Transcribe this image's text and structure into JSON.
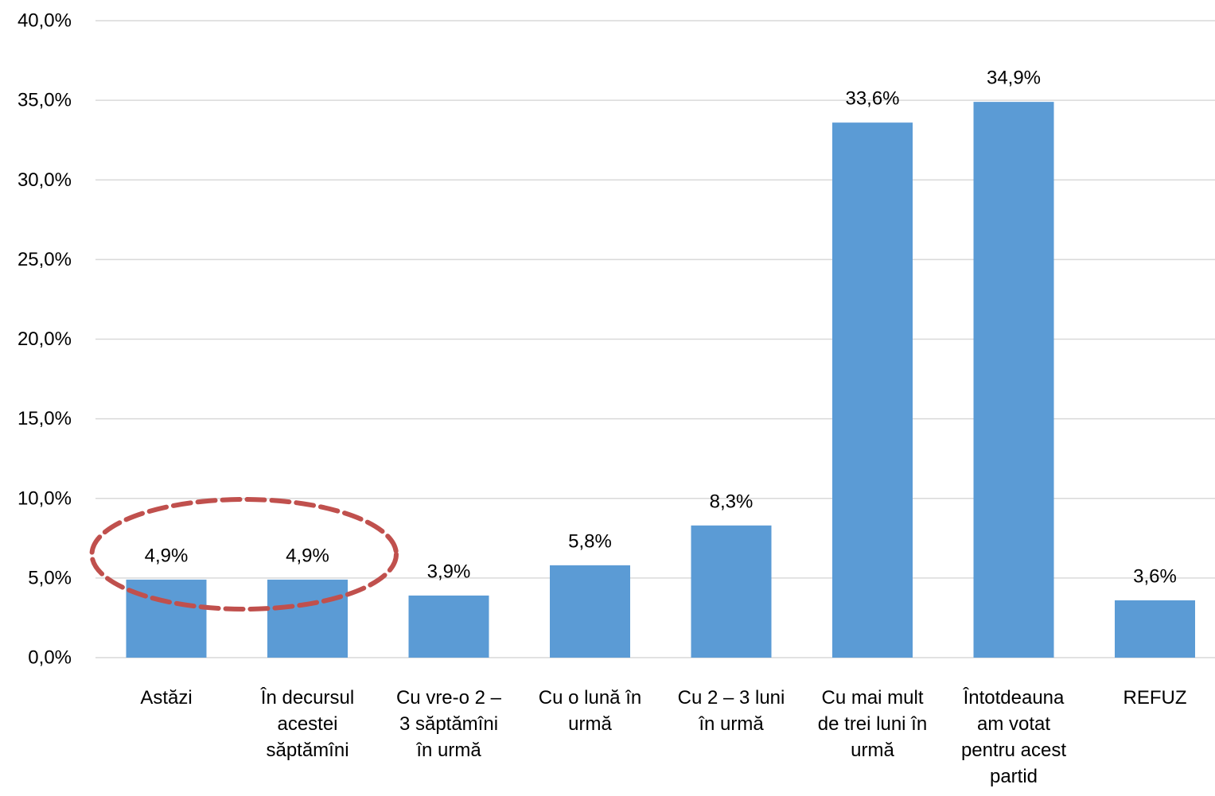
{
  "chart_data": {
    "type": "bar",
    "categories": [
      [
        "Astăzi"
      ],
      [
        "În decursul",
        "acestei",
        "săptămîni"
      ],
      [
        "Cu vre-o 2 –",
        "3 săptămîni",
        "în urmă"
      ],
      [
        "Cu o lună în",
        "urmă"
      ],
      [
        "Cu 2 – 3 luni",
        "în urmă"
      ],
      [
        "Cu mai mult",
        "de trei luni în",
        "urmă"
      ],
      [
        "Întotdeauna",
        "am votat",
        "pentru acest",
        "partid"
      ],
      [
        "REFUZ"
      ]
    ],
    "values": [
      4.9,
      4.9,
      3.9,
      5.8,
      8.3,
      33.6,
      34.9,
      3.6
    ],
    "data_labels": [
      "4,9%",
      "4,9%",
      "3,9%",
      "5,8%",
      "8,3%",
      "33,6%",
      "34,9%",
      "3,6%"
    ],
    "y_ticks": [
      "0,0%",
      "5,0%",
      "10,0%",
      "15,0%",
      "20,0%",
      "25,0%",
      "30,0%",
      "35,0%",
      "40,0%"
    ],
    "ylim": [
      0,
      40
    ],
    "grid": true,
    "bar_color": "#5B9BD5",
    "gridline_color": "#D9D9D9",
    "highlight": {
      "shape": "dashed-ellipse",
      "color": "#C0504D",
      "covers_categories": [
        0,
        1
      ]
    }
  }
}
